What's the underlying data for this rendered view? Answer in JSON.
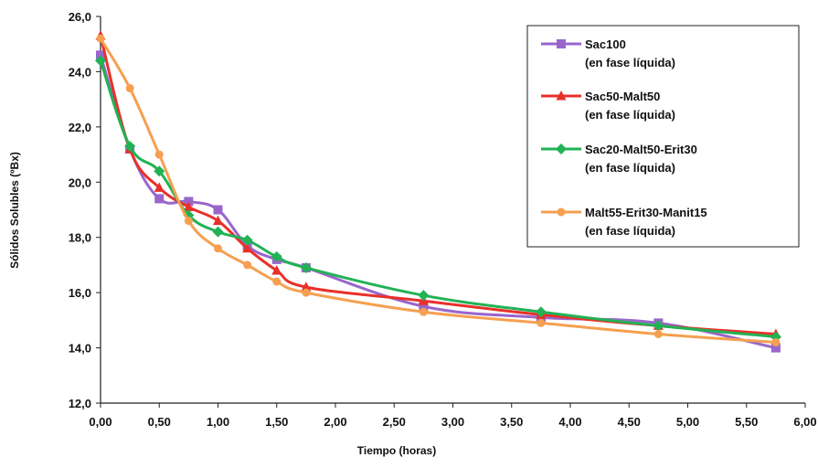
{
  "chart_data": {
    "type": "line",
    "title": "",
    "xlabel": "Tiempo (horas)",
    "ylabel": "Sólidos Solubles (ºBx)",
    "xlim": [
      0,
      6
    ],
    "ylim": [
      12,
      26
    ],
    "x_ticks": [
      "0,00",
      "0,50",
      "1,00",
      "1,50",
      "2,00",
      "2,50",
      "3,00",
      "3,50",
      "4,00",
      "4,50",
      "5,00",
      "5,50",
      "6,00"
    ],
    "y_ticks": [
      "12,0",
      "14,0",
      "16,0",
      "18,0",
      "20,0",
      "22,0",
      "24,0",
      "26,0"
    ],
    "grid": false,
    "legend_position": "top-right",
    "series": [
      {
        "name": "Sac100",
        "name_line2": "(en fase líquida)",
        "color": "#9966cc",
        "marker": "square",
        "x": [
          0,
          0.25,
          0.5,
          0.75,
          1.0,
          1.25,
          1.5,
          1.75,
          2.75,
          3.75,
          4.75,
          5.75
        ],
        "values": [
          24.6,
          21.2,
          19.4,
          19.3,
          19.0,
          17.7,
          17.2,
          16.9,
          15.5,
          15.1,
          14.9,
          14.0
        ]
      },
      {
        "name": "Sac50-Malt50",
        "name_line2": "(en fase líquida)",
        "color": "#e8302a",
        "marker": "triangle",
        "x": [
          0,
          0.25,
          0.5,
          0.75,
          1.0,
          1.25,
          1.5,
          1.75,
          2.75,
          3.75,
          4.75,
          5.75
        ],
        "values": [
          25.3,
          21.2,
          19.8,
          19.1,
          18.6,
          17.6,
          16.8,
          16.2,
          15.7,
          15.2,
          14.8,
          14.5
        ]
      },
      {
        "name": "Sac20-Malt50-Erit30",
        "name_line2": "(en fase líquida)",
        "color": "#22b255",
        "marker": "diamond",
        "x": [
          0,
          0.25,
          0.5,
          0.75,
          1.0,
          1.25,
          1.5,
          1.75,
          2.75,
          3.75,
          4.75,
          5.75
        ],
        "values": [
          24.4,
          21.3,
          20.4,
          18.8,
          18.2,
          17.9,
          17.3,
          16.9,
          15.9,
          15.3,
          14.8,
          14.4
        ]
      },
      {
        "name": "Malt55-Erit30-Manit15",
        "name_line2": "(en fase líquida)",
        "color": "#f5a050",
        "marker": "circle",
        "x": [
          0,
          0.25,
          0.5,
          0.75,
          1.0,
          1.25,
          1.5,
          1.75,
          2.75,
          3.75,
          4.75,
          5.75
        ],
        "values": [
          25.2,
          23.4,
          21.0,
          18.6,
          17.6,
          17.0,
          16.4,
          16.0,
          15.3,
          14.9,
          14.5,
          14.2
        ]
      }
    ]
  }
}
